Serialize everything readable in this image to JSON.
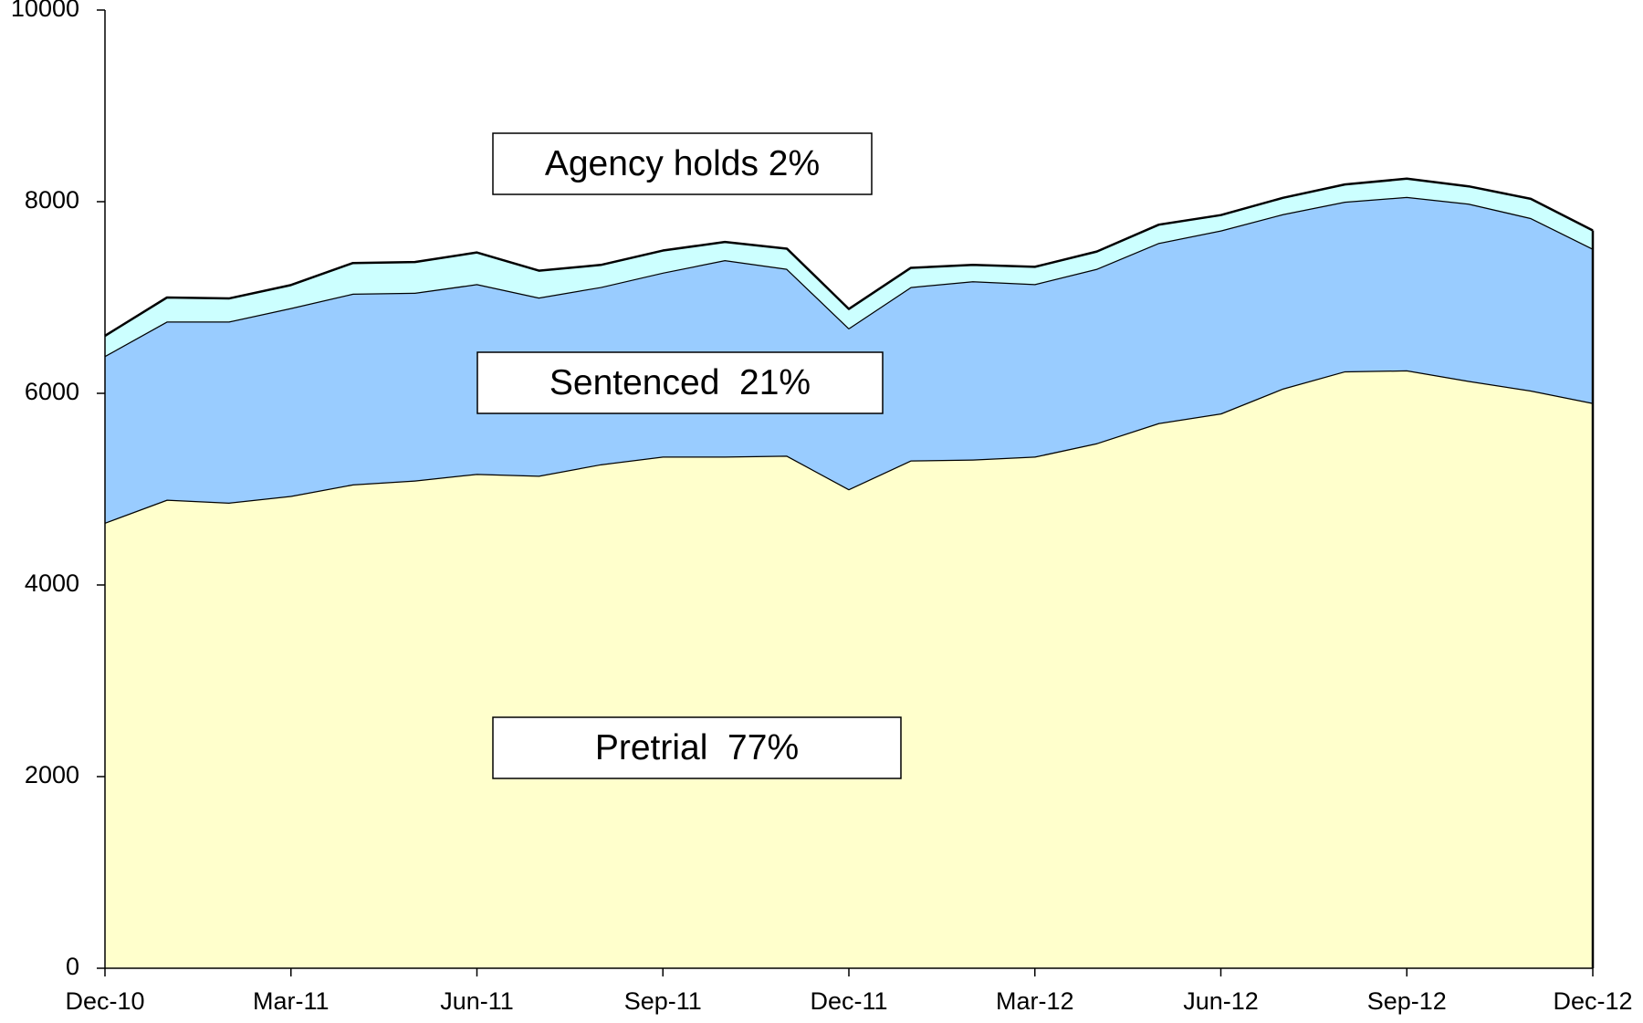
{
  "chart_data": {
    "type": "stacked_area",
    "categories": [
      "Dec-10",
      null,
      null,
      "Mar-11",
      null,
      null,
      "Jun-11",
      null,
      null,
      "Sep-11",
      null,
      null,
      "Dec-11",
      null,
      null,
      "Mar-12",
      null,
      null,
      "Jun-12",
      null,
      null,
      "Sep-12",
      null,
      null,
      "Dec-12"
    ],
    "series": [
      {
        "name": "Pretrial  77%",
        "color": "#ffffcc",
        "values": [
          4650,
          4890,
          4860,
          4930,
          5050,
          5090,
          5160,
          5140,
          5260,
          5340,
          5340,
          5350,
          5000,
          5300,
          5310,
          5340,
          5480,
          5690,
          5790,
          6050,
          6230,
          6240,
          6130,
          6030,
          5900
        ]
      },
      {
        "name": "Sentenced  21%",
        "color": "#99ccff",
        "values": [
          1740,
          1860,
          1890,
          1960,
          1990,
          1960,
          1980,
          1860,
          1850,
          1920,
          2050,
          1950,
          1680,
          1810,
          1860,
          1800,
          1820,
          1880,
          1910,
          1820,
          1770,
          1810,
          1850,
          1800,
          1610
        ]
      },
      {
        "name": "Agency holds 2%",
        "color": "#ccffff",
        "values": [
          210,
          250,
          240,
          240,
          320,
          320,
          330,
          280,
          230,
          230,
          190,
          210,
          200,
          200,
          170,
          180,
          180,
          190,
          160,
          170,
          180,
          190,
          180,
          200,
          190
        ]
      }
    ],
    "ylim": [
      0,
      10000
    ],
    "yticks": [
      0,
      2000,
      4000,
      6000,
      8000,
      10000
    ]
  }
}
